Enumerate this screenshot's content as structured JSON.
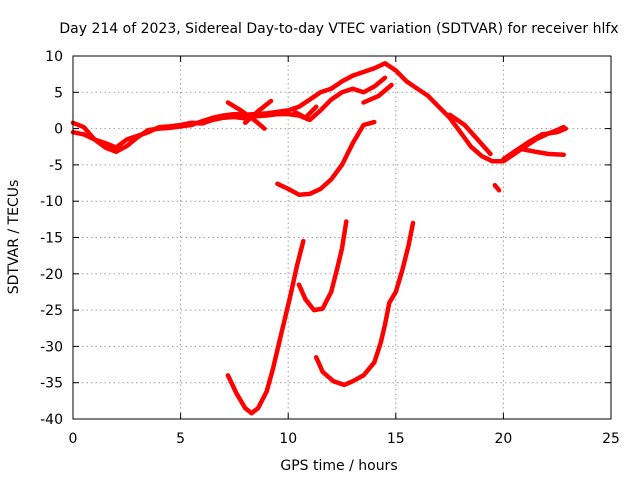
{
  "chart_data": {
    "type": "scatter",
    "title": "Day 214 of 2023, Sidereal Day-to-day VTEC variation (SDTVAR) for receiver hlfx",
    "xlabel": "GPS time / hours",
    "ylabel": "SDTVAR / TECUs",
    "xlim": [
      0,
      25
    ],
    "ylim": [
      -40,
      10
    ],
    "xticks": [
      0,
      5,
      10,
      15,
      20,
      25
    ],
    "yticks": [
      10,
      5,
      0,
      -5,
      -10,
      -15,
      -20,
      -25,
      -30,
      -35,
      -40
    ],
    "xtick_labels": [
      "0",
      "5",
      "10",
      "15",
      "20",
      "25"
    ],
    "ytick_labels": [
      "10",
      "5",
      "0",
      "-5",
      "-10",
      "-15",
      "-20",
      "-25",
      "-30",
      "-35",
      "-40"
    ],
    "grid": true,
    "legend": "none",
    "color": "#ff0000",
    "series": [
      {
        "values": [
          [
            0,
            0.8
          ],
          [
            0.5,
            0.2
          ],
          [
            1,
            -1.5
          ],
          [
            1.5,
            -2.6
          ],
          [
            2,
            -3.2
          ],
          [
            2.5,
            -2.4
          ],
          [
            3,
            -1.2
          ],
          [
            3.5,
            -0.2
          ],
          [
            4,
            0
          ],
          [
            4.5,
            0.1
          ],
          [
            5,
            0.3
          ],
          [
            5.5,
            0.5
          ],
          [
            6,
            1
          ],
          [
            6.5,
            1.5
          ],
          [
            7,
            1.8
          ],
          [
            7.5,
            2
          ],
          [
            8,
            1.9
          ],
          [
            8.5,
            2
          ],
          [
            9,
            2.1
          ],
          [
            9.5,
            2.3
          ],
          [
            10,
            2.5
          ],
          [
            10.5,
            3
          ],
          [
            11,
            4
          ],
          [
            11.5,
            5
          ],
          [
            12,
            5.5
          ],
          [
            12.5,
            6.5
          ],
          [
            13,
            7.3
          ],
          [
            13.5,
            7.8
          ],
          [
            14,
            8.3
          ],
          [
            14.5,
            9
          ],
          [
            15,
            8
          ],
          [
            15.5,
            6.5
          ],
          [
            16,
            5.5
          ],
          [
            16.5,
            4.5
          ],
          [
            17,
            3
          ],
          [
            17.5,
            1.5
          ],
          [
            18,
            -0.5
          ],
          [
            18.5,
            -2.5
          ],
          [
            19,
            -3.8
          ],
          [
            19.5,
            -4.5
          ],
          [
            20,
            -4.5
          ],
          [
            20.5,
            -3.5
          ],
          [
            21,
            -2.5
          ],
          [
            21.5,
            -1.5
          ],
          [
            22,
            -0.8
          ],
          [
            22.5,
            -0.2
          ],
          [
            22.8,
            0.2
          ]
        ]
      },
      {
        "values": [
          [
            0,
            -0.5
          ],
          [
            0.5,
            -0.8
          ],
          [
            1,
            -1.5
          ],
          [
            1.5,
            -2
          ],
          [
            2,
            -2.6
          ],
          [
            2.5,
            -1.5
          ],
          [
            3,
            -1
          ],
          [
            3.5,
            -0.5
          ],
          [
            4,
            0.2
          ],
          [
            4.5,
            0.3
          ],
          [
            5,
            0.5
          ],
          [
            5.5,
            0.8
          ],
          [
            6,
            0.7
          ],
          [
            6.5,
            1.2
          ],
          [
            7,
            1.5
          ],
          [
            7.5,
            1.6
          ],
          [
            8,
            1.4
          ],
          [
            8.5,
            1.7
          ],
          [
            9,
            1.8
          ],
          [
            9.5,
            2
          ],
          [
            10,
            2
          ],
          [
            10.5,
            1.8
          ],
          [
            11,
            1.2
          ],
          [
            11.5,
            2.5
          ],
          [
            12,
            4
          ],
          [
            12.5,
            5
          ],
          [
            13,
            5.5
          ],
          [
            13.5,
            5
          ],
          [
            14,
            5.8
          ],
          [
            14.5,
            7
          ]
        ]
      },
      {
        "values": [
          [
            7.2,
            3.6
          ],
          [
            7.8,
            2.5
          ],
          [
            8.5,
            1
          ],
          [
            8.9,
            0
          ]
        ]
      },
      {
        "values": [
          [
            8,
            0.8
          ],
          [
            8.6,
            2.4
          ],
          [
            9.2,
            3.8
          ]
        ]
      },
      {
        "values": [
          [
            10.3,
            2.3
          ],
          [
            10.8,
            1.5
          ],
          [
            11.3,
            3
          ]
        ]
      },
      {
        "values": [
          [
            13.5,
            3.6
          ],
          [
            14.2,
            4.5
          ],
          [
            14.8,
            6
          ]
        ]
      },
      {
        "values": [
          [
            17.5,
            1.9
          ],
          [
            18.2,
            0.5
          ],
          [
            18.8,
            -1.5
          ],
          [
            19.4,
            -3.5
          ]
        ]
      },
      {
        "values": [
          [
            19.6,
            -7.8
          ],
          [
            19.8,
            -8.5
          ]
        ]
      },
      {
        "values": [
          [
            20,
            -4.2
          ],
          [
            20.6,
            -3
          ],
          [
            21.2,
            -1.8
          ],
          [
            21.8,
            -0.8
          ],
          [
            22.5,
            -0.5
          ],
          [
            22.9,
            0
          ]
        ]
      },
      {
        "values": [
          [
            20.8,
            -2.8
          ],
          [
            21.5,
            -3.2
          ],
          [
            22.1,
            -3.5
          ],
          [
            22.8,
            -3.6
          ]
        ]
      },
      {
        "values": [
          [
            9.5,
            -7.6
          ],
          [
            10,
            -8.3
          ],
          [
            10.5,
            -9.1
          ],
          [
            11,
            -9
          ],
          [
            11.5,
            -8.3
          ],
          [
            12,
            -7
          ],
          [
            12.5,
            -5
          ],
          [
            13,
            -2
          ],
          [
            13.5,
            0.5
          ],
          [
            14,
            0.9
          ]
        ]
      },
      {
        "values": [
          [
            7.2,
            -34
          ],
          [
            7.6,
            -36.5
          ],
          [
            8,
            -38.5
          ],
          [
            8.3,
            -39.2
          ],
          [
            8.6,
            -38.5
          ],
          [
            9,
            -36.2
          ],
          [
            9.3,
            -33
          ],
          [
            9.7,
            -28
          ],
          [
            10.1,
            -23
          ],
          [
            10.4,
            -19
          ],
          [
            10.7,
            -15.5
          ]
        ]
      },
      {
        "values": [
          [
            10.5,
            -21.5
          ],
          [
            10.8,
            -23.5
          ],
          [
            11.2,
            -25
          ],
          [
            11.6,
            -24.8
          ],
          [
            12,
            -22.5
          ],
          [
            12.3,
            -19
          ],
          [
            12.5,
            -16.5
          ],
          [
            12.7,
            -12.8
          ]
        ]
      },
      {
        "values": [
          [
            11.3,
            -31.5
          ],
          [
            11.6,
            -33.5
          ],
          [
            12.1,
            -34.8
          ],
          [
            12.6,
            -35.3
          ],
          [
            13,
            -34.8
          ],
          [
            13.5,
            -34
          ],
          [
            14,
            -32.2
          ],
          [
            14.3,
            -29.5
          ],
          [
            14.5,
            -27
          ],
          [
            14.7,
            -24
          ],
          [
            15,
            -22.5
          ],
          [
            15.3,
            -19.5
          ],
          [
            15.6,
            -16
          ],
          [
            15.8,
            -13
          ]
        ]
      }
    ]
  }
}
